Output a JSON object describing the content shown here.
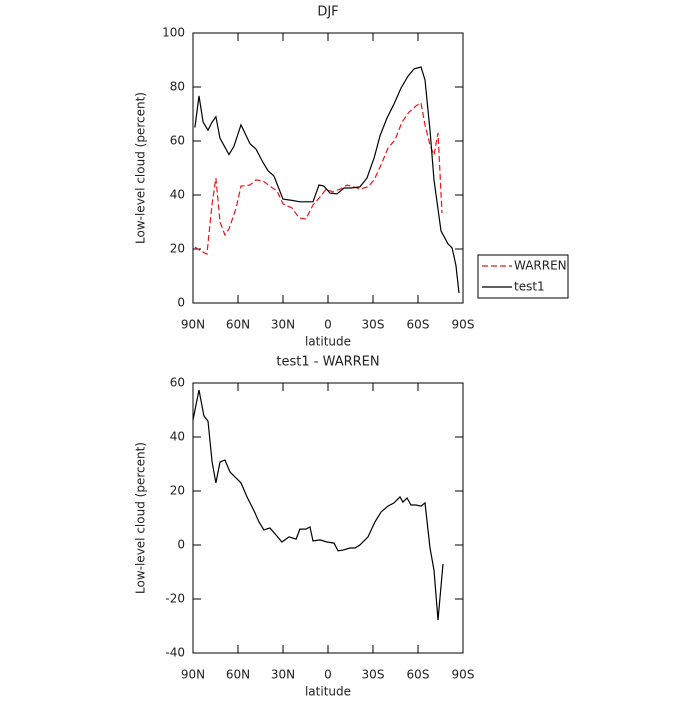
{
  "chart_data": [
    {
      "type": "line",
      "title": "DJF",
      "x_label": "latitude",
      "y_label": "Low-level cloud (percent)",
      "xlim": [
        90,
        -90
      ],
      "ylim": [
        0,
        100
      ],
      "xticks": [
        {
          "value": 90,
          "label": "90N"
        },
        {
          "value": 60,
          "label": "60N"
        },
        {
          "value": 30,
          "label": "30N"
        },
        {
          "value": 0,
          "label": "0"
        },
        {
          "value": -30,
          "label": "30S"
        },
        {
          "value": -60,
          "label": "60S"
        },
        {
          "value": -90,
          "label": "90S"
        }
      ],
      "yticks": [
        0,
        20,
        40,
        60,
        80,
        100
      ],
      "legend": "right",
      "series": [
        {
          "name": "WARREN",
          "color": "#e8161a",
          "linestyle": "dashed",
          "x": [
            88.7,
            84.7,
            80.7,
            77.3,
            74.7,
            72,
            68.7,
            66,
            61.3,
            58,
            52,
            48,
            43.3,
            38.7,
            34,
            30,
            24,
            19.3,
            14.7,
            10,
            5.3,
            1.3,
            -3.3,
            -8,
            -12.7,
            -17.3,
            -21.3,
            -26.7,
            -30.7,
            -35.3,
            -40,
            -44.7,
            -49.3,
            -54,
            -58.7,
            -62,
            -64.7,
            -68,
            -70.7,
            -73.3,
            -76
          ],
          "values": [
            20.7,
            19.3,
            18.1,
            36.7,
            46.3,
            30,
            25.2,
            27.4,
            35.2,
            43.3,
            43.7,
            45.6,
            45.2,
            43.3,
            41.5,
            36.7,
            35.2,
            31.5,
            31.1,
            36.3,
            39.3,
            42.2,
            41.1,
            42.2,
            43.7,
            43,
            42.2,
            43,
            45.6,
            51.1,
            57.4,
            60.4,
            67,
            70.7,
            73,
            74.1,
            65.9,
            58.5,
            54.8,
            63,
            33.3
          ]
        },
        {
          "name": "test1",
          "color": "#000000",
          "linestyle": "solid",
          "x": [
            88.7,
            86,
            83.3,
            80,
            77.3,
            74.7,
            72,
            66,
            62.7,
            58,
            52,
            48,
            43.3,
            40,
            36,
            30,
            24,
            18.7,
            10,
            6,
            2.7,
            -1.3,
            -6,
            -10.7,
            -15.3,
            -21.3,
            -26,
            -30.7,
            -34.7,
            -39.3,
            -44,
            -48.7,
            -53.3,
            -57.3,
            -62,
            -64.7,
            -68,
            -70.7,
            -75.3,
            -80,
            -82.7,
            -85.3,
            -87.3
          ],
          "values": [
            65,
            76.7,
            67,
            64,
            67,
            69,
            61,
            55,
            58,
            66,
            59,
            57,
            52,
            49,
            47,
            38.5,
            38,
            37.5,
            37.5,
            43.7,
            43.3,
            40.7,
            40.4,
            42.6,
            42.6,
            43,
            46.3,
            53.7,
            62,
            68.5,
            73.7,
            79.6,
            84,
            86.7,
            87.4,
            82.6,
            64,
            45.6,
            26.7,
            21.9,
            20.4,
            14,
            3.7
          ]
        }
      ]
    },
    {
      "type": "line",
      "title": "test1 - WARREN",
      "x_label": "latitude",
      "y_label": "Low-level cloud (percent)",
      "xlim": [
        90,
        -90
      ],
      "ylim": [
        -40,
        60
      ],
      "xticks": [
        {
          "value": 90,
          "label": "90N"
        },
        {
          "value": 60,
          "label": "60N"
        },
        {
          "value": 30,
          "label": "30N"
        },
        {
          "value": 0,
          "label": "0"
        },
        {
          "value": -30,
          "label": "30S"
        },
        {
          "value": -60,
          "label": "60S"
        },
        {
          "value": -90,
          "label": "90S"
        }
      ],
      "yticks": [
        -40,
        -20,
        0,
        20,
        40,
        60
      ],
      "series": [
        {
          "color": "#000000",
          "linestyle": "solid",
          "x": [
            90,
            86,
            82.7,
            80,
            77.3,
            74.7,
            72,
            68.7,
            65.3,
            61.3,
            58,
            54,
            49.3,
            46,
            42.7,
            38.7,
            34,
            30.7,
            26,
            21.3,
            18.7,
            14.7,
            12,
            10,
            5.3,
            0.7,
            -4,
            -6.7,
            -10,
            -14.7,
            -18,
            -21.3,
            -26.7,
            -31.3,
            -35.3,
            -40,
            -44,
            -48,
            -50,
            -52.7,
            -55.3,
            -58.7,
            -62,
            -64.7,
            -68,
            -70.7,
            -73.3,
            -76.7
          ],
          "values": [
            46.3,
            57.4,
            47.8,
            45.9,
            30.7,
            23,
            30.7,
            31.5,
            27,
            24.8,
            23,
            17.8,
            12.6,
            8.5,
            5.6,
            6.3,
            3.3,
            1.1,
            3,
            2.2,
            5.9,
            5.9,
            6.7,
            1.5,
            1.9,
            1.1,
            0.7,
            -2.2,
            -1.9,
            -1.1,
            -1.1,
            0,
            3,
            8.5,
            12.2,
            14.4,
            15.6,
            17.8,
            15.9,
            17.4,
            14.8,
            14.8,
            14.4,
            15.6,
            -1.1,
            -9.3,
            -27.8,
            -7
          ]
        }
      ]
    }
  ]
}
